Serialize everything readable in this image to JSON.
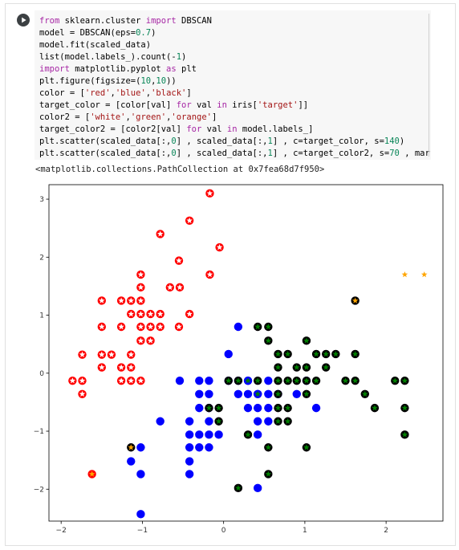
{
  "cell": {
    "code_lines": [
      [
        {
          "t": "kw",
          "v": "from"
        },
        {
          "t": "plain",
          "v": " sklearn.cluster "
        },
        {
          "t": "kw",
          "v": "import"
        },
        {
          "t": "plain",
          "v": " DBSCAN"
        }
      ],
      [
        {
          "t": "plain",
          "v": "model = DBSCAN(eps="
        },
        {
          "t": "num",
          "v": "0.7"
        },
        {
          "t": "plain",
          "v": ")"
        }
      ],
      [
        {
          "t": "plain",
          "v": "model.fit(scaled_data)"
        }
      ],
      [
        {
          "t": "plain",
          "v": "list(model.labels_).count(-"
        },
        {
          "t": "num",
          "v": "1"
        },
        {
          "t": "plain",
          "v": ")"
        }
      ],
      [
        {
          "t": "kw",
          "v": "import"
        },
        {
          "t": "plain",
          "v": " matplotlib.pyplot "
        },
        {
          "t": "kw",
          "v": "as"
        },
        {
          "t": "plain",
          "v": " plt"
        }
      ],
      [
        {
          "t": "plain",
          "v": "plt.figure(figsize=("
        },
        {
          "t": "num",
          "v": "10"
        },
        {
          "t": "plain",
          "v": ","
        },
        {
          "t": "num",
          "v": "10"
        },
        {
          "t": "plain",
          "v": "))"
        }
      ],
      [
        {
          "t": "plain",
          "v": "color = ["
        },
        {
          "t": "str",
          "v": "'red'"
        },
        {
          "t": "plain",
          "v": ","
        },
        {
          "t": "str",
          "v": "'blue'"
        },
        {
          "t": "plain",
          "v": ","
        },
        {
          "t": "str",
          "v": "'black'"
        },
        {
          "t": "plain",
          "v": "]"
        }
      ],
      [
        {
          "t": "plain",
          "v": "target_color = [color[val] "
        },
        {
          "t": "kw",
          "v": "for"
        },
        {
          "t": "plain",
          "v": " val "
        },
        {
          "t": "kw",
          "v": "in"
        },
        {
          "t": "plain",
          "v": " iris["
        },
        {
          "t": "str",
          "v": "'target'"
        },
        {
          "t": "plain",
          "v": "]]"
        }
      ],
      [
        {
          "t": "plain",
          "v": "color2 = ["
        },
        {
          "t": "str",
          "v": "'white'"
        },
        {
          "t": "plain",
          "v": ","
        },
        {
          "t": "str",
          "v": "'green'"
        },
        {
          "t": "plain",
          "v": ","
        },
        {
          "t": "str",
          "v": "'orange'"
        },
        {
          "t": "plain",
          "v": "]"
        }
      ],
      [
        {
          "t": "plain",
          "v": "target_color2 = [color2[val] "
        },
        {
          "t": "kw",
          "v": "for"
        },
        {
          "t": "plain",
          "v": " val "
        },
        {
          "t": "kw",
          "v": "in"
        },
        {
          "t": "plain",
          "v": " model.labels_]"
        }
      ],
      [
        {
          "t": "plain",
          "v": "plt.scatter(scaled_data[:,"
        },
        {
          "t": "num",
          "v": "0"
        },
        {
          "t": "plain",
          "v": "] , scaled_data[:,"
        },
        {
          "t": "num",
          "v": "1"
        },
        {
          "t": "plain",
          "v": "] , c=target_color, s="
        },
        {
          "t": "num",
          "v": "140"
        },
        {
          "t": "plain",
          "v": ")"
        }
      ],
      [
        {
          "t": "plain",
          "v": "plt.scatter(scaled_data[:,"
        },
        {
          "t": "num",
          "v": "0"
        },
        {
          "t": "plain",
          "v": "] , scaled_data[:,"
        },
        {
          "t": "num",
          "v": "1"
        },
        {
          "t": "plain",
          "v": "] , c=target_color2, s="
        },
        {
          "t": "num",
          "v": "70"
        },
        {
          "t": "plain",
          "v": " , marker="
        },
        {
          "t": "str",
          "v": "'*'"
        },
        {
          "t": "plain",
          "v": ")"
        }
      ]
    ],
    "output_text": "<matplotlib.collections.PathCollection at 0x7fea68d7f950>"
  },
  "colors": {
    "red": "#ff0000",
    "blue": "#0000ff",
    "black": "#000000",
    "white": "#ffffff",
    "green": "#008000",
    "orange": "#ffa500",
    "kw": "#a626a4",
    "num": "#098658",
    "str": "#a31515"
  },
  "icons": {
    "run": "play-circle-icon"
  },
  "chart_data": {
    "type": "scatter",
    "title": "",
    "xlabel": "",
    "ylabel": "",
    "xlim": [
      -2.15,
      2.7
    ],
    "ylim": [
      -2.55,
      3.25
    ],
    "xticks": [
      -2,
      -1,
      0,
      1,
      2
    ],
    "yticks": [
      -2,
      -1,
      0,
      1,
      2,
      3
    ],
    "grid": false,
    "series": [
      {
        "color": "red",
        "inner": "white",
        "points": [
          [
            -0.17,
            3.1
          ],
          [
            -0.42,
            2.63
          ],
          [
            -0.05,
            2.17
          ],
          [
            -0.78,
            2.4
          ],
          [
            -0.55,
            1.94
          ],
          [
            -1.02,
            1.7
          ],
          [
            -0.17,
            1.7
          ],
          [
            -1.02,
            1.48
          ],
          [
            -0.66,
            1.48
          ],
          [
            -0.54,
            1.48
          ],
          [
            -1.5,
            1.25
          ],
          [
            -1.14,
            1.25
          ],
          [
            -1.02,
            1.25
          ],
          [
            -1.26,
            1.25
          ],
          [
            -1.02,
            1.02
          ],
          [
            -0.9,
            1.02
          ],
          [
            -0.78,
            1.02
          ],
          [
            -1.14,
            1.02
          ],
          [
            -0.42,
            1.02
          ],
          [
            -1.5,
            0.8
          ],
          [
            -1.26,
            0.8
          ],
          [
            -1.02,
            0.8
          ],
          [
            -0.9,
            0.8
          ],
          [
            -0.78,
            0.8
          ],
          [
            -0.55,
            0.8
          ],
          [
            -1.02,
            0.56
          ],
          [
            -0.9,
            0.56
          ],
          [
            -1.74,
            0.32
          ],
          [
            -1.5,
            0.32
          ],
          [
            -1.38,
            0.32
          ],
          [
            -1.14,
            0.32
          ],
          [
            -1.5,
            0.1
          ],
          [
            -1.26,
            0.1
          ],
          [
            -1.14,
            0.1
          ],
          [
            -1.86,
            -0.13
          ],
          [
            -1.74,
            -0.13
          ],
          [
            -1.26,
            -0.13
          ],
          [
            -1.14,
            -0.13
          ],
          [
            -1.02,
            -0.13
          ],
          [
            -1.74,
            -0.36
          ]
        ]
      },
      {
        "color": "red",
        "inner": "orange",
        "points": [
          [
            -1.62,
            -1.74
          ]
        ]
      },
      {
        "color": "blue",
        "inner": "blue",
        "points": [
          [
            0.18,
            0.8
          ],
          [
            0.06,
            0.33
          ],
          [
            -0.54,
            -0.13
          ],
          [
            -0.3,
            -0.13
          ],
          [
            -0.18,
            -0.13
          ],
          [
            0.06,
            -0.13
          ],
          [
            0.18,
            -0.13
          ],
          [
            0.3,
            -0.13
          ],
          [
            0.55,
            -0.13
          ],
          [
            1.02,
            -0.13
          ],
          [
            -0.3,
            -0.36
          ],
          [
            -0.18,
            -0.36
          ],
          [
            0.18,
            -0.36
          ],
          [
            0.3,
            -0.36
          ],
          [
            0.42,
            -0.36
          ],
          [
            0.55,
            -0.36
          ],
          [
            0.67,
            -0.36
          ],
          [
            0.9,
            -0.36
          ],
          [
            -0.3,
            -0.6
          ],
          [
            -0.18,
            -0.6
          ],
          [
            0.3,
            -0.6
          ],
          [
            0.42,
            -0.6
          ],
          [
            0.55,
            -0.6
          ],
          [
            1.14,
            -0.6
          ],
          [
            -0.78,
            -0.83
          ],
          [
            -0.42,
            -0.83
          ],
          [
            -0.18,
            -0.83
          ],
          [
            0.42,
            -0.83
          ],
          [
            0.55,
            -0.83
          ],
          [
            -0.42,
            -1.06
          ],
          [
            -0.3,
            -1.06
          ],
          [
            -0.18,
            -1.06
          ],
          [
            -0.06,
            -1.06
          ],
          [
            0.42,
            -1.06
          ],
          [
            -1.02,
            -1.28
          ],
          [
            -0.42,
            -1.28
          ],
          [
            -0.3,
            -1.28
          ],
          [
            -0.18,
            -1.28
          ],
          [
            -1.14,
            -1.52
          ],
          [
            -0.42,
            -1.52
          ],
          [
            -1.02,
            -1.74
          ],
          [
            -0.42,
            -1.74
          ],
          [
            0.42,
            -1.98
          ],
          [
            -1.02,
            -2.43
          ]
        ]
      },
      {
        "color": "blue",
        "inner": "green",
        "points": [
          [
            0.3,
            -0.13
          ],
          [
            0.42,
            -0.36
          ]
        ]
      },
      {
        "color": "black",
        "inner": "green",
        "points": [
          [
            0.42,
            0.8
          ],
          [
            0.55,
            0.8
          ],
          [
            0.55,
            0.56
          ],
          [
            1.02,
            0.56
          ],
          [
            0.67,
            0.33
          ],
          [
            0.79,
            0.33
          ],
          [
            1.14,
            0.33
          ],
          [
            1.26,
            0.33
          ],
          [
            1.38,
            0.33
          ],
          [
            1.62,
            0.33
          ],
          [
            0.67,
            0.1
          ],
          [
            0.9,
            0.1
          ],
          [
            1.02,
            0.1
          ],
          [
            1.26,
            0.1
          ],
          [
            0.06,
            -0.13
          ],
          [
            0.18,
            -0.13
          ],
          [
            0.42,
            -0.13
          ],
          [
            0.67,
            -0.13
          ],
          [
            0.79,
            -0.13
          ],
          [
            0.9,
            -0.13
          ],
          [
            1.02,
            -0.13
          ],
          [
            1.14,
            -0.13
          ],
          [
            1.5,
            -0.13
          ],
          [
            1.62,
            -0.13
          ],
          [
            2.11,
            -0.13
          ],
          [
            2.23,
            -0.13
          ],
          [
            0.67,
            -0.36
          ],
          [
            1.02,
            -0.36
          ],
          [
            1.74,
            -0.36
          ],
          [
            -0.18,
            -0.6
          ],
          [
            -0.06,
            -0.6
          ],
          [
            0.67,
            -0.6
          ],
          [
            0.79,
            -0.6
          ],
          [
            1.86,
            -0.6
          ],
          [
            2.23,
            -0.6
          ],
          [
            -0.06,
            -0.83
          ],
          [
            0.67,
            -0.83
          ],
          [
            0.79,
            -0.83
          ],
          [
            0.3,
            -1.06
          ],
          [
            2.23,
            -1.06
          ],
          [
            0.55,
            -1.28
          ],
          [
            1.02,
            -1.28
          ],
          [
            0.55,
            -1.74
          ],
          [
            0.18,
            -1.98
          ]
        ]
      },
      {
        "color": "black",
        "inner": "orange",
        "points": [
          [
            1.62,
            1.25
          ],
          [
            -1.14,
            -1.28
          ]
        ]
      },
      {
        "color": "none",
        "inner": "orange",
        "points": [
          [
            2.23,
            1.7
          ],
          [
            2.47,
            1.7
          ]
        ]
      }
    ]
  }
}
